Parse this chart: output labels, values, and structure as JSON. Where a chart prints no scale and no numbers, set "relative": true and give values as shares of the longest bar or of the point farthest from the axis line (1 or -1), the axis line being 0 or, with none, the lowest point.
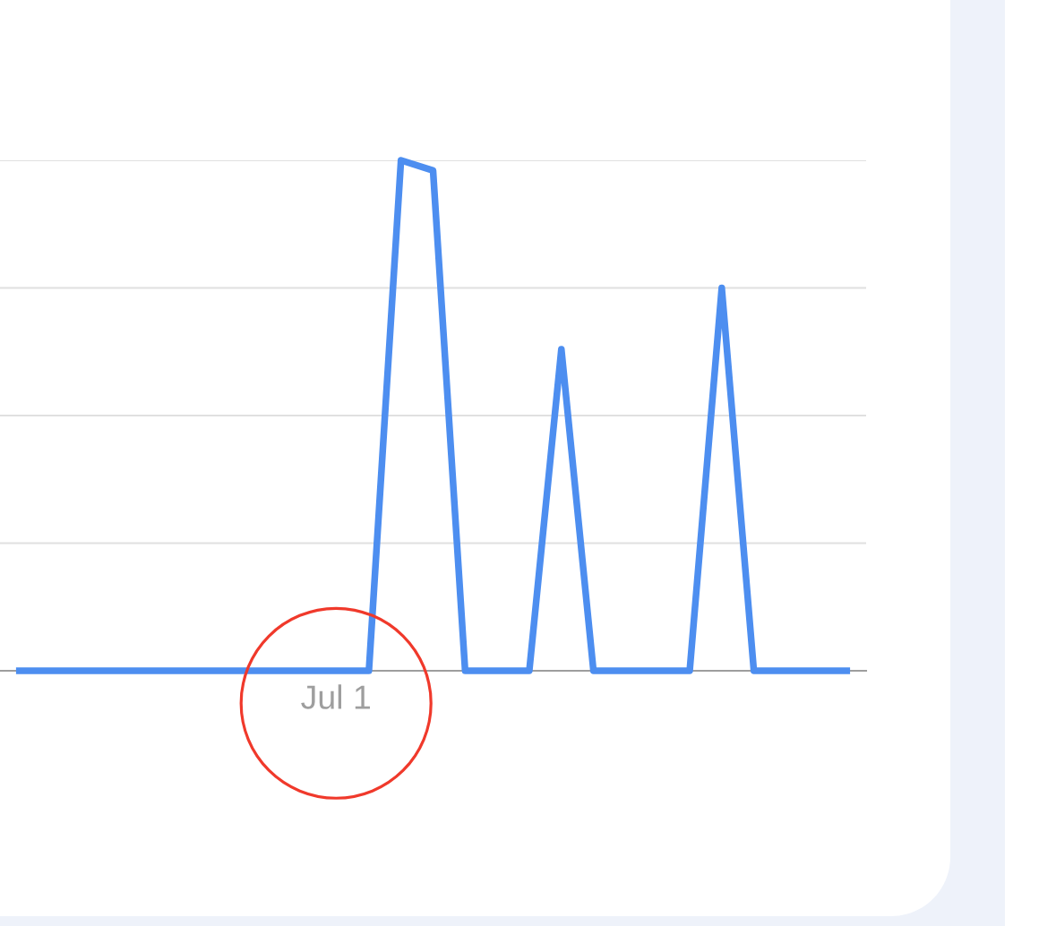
{
  "chart_data": {
    "type": "line",
    "relative": true,
    "categories": [
      null,
      null,
      null,
      null,
      null,
      null,
      null,
      null,
      null,
      null,
      null,
      null,
      null,
      null,
      null,
      null,
      null,
      null,
      null,
      null,
      null,
      null,
      null,
      null,
      null,
      null,
      null
    ],
    "series": [
      {
        "color": "#4d8ef0",
        "values": [
          0,
          0,
          0,
          0,
          0,
          0,
          0,
          0,
          0,
          0,
          0,
          0,
          1,
          0.98,
          0,
          0,
          0,
          0.63,
          0,
          0,
          0,
          0,
          0.75,
          0,
          0,
          0,
          0
        ]
      }
    ],
    "annotations": [
      "Jul 1"
    ],
    "grid": "y",
    "line_style": "solid"
  }
}
